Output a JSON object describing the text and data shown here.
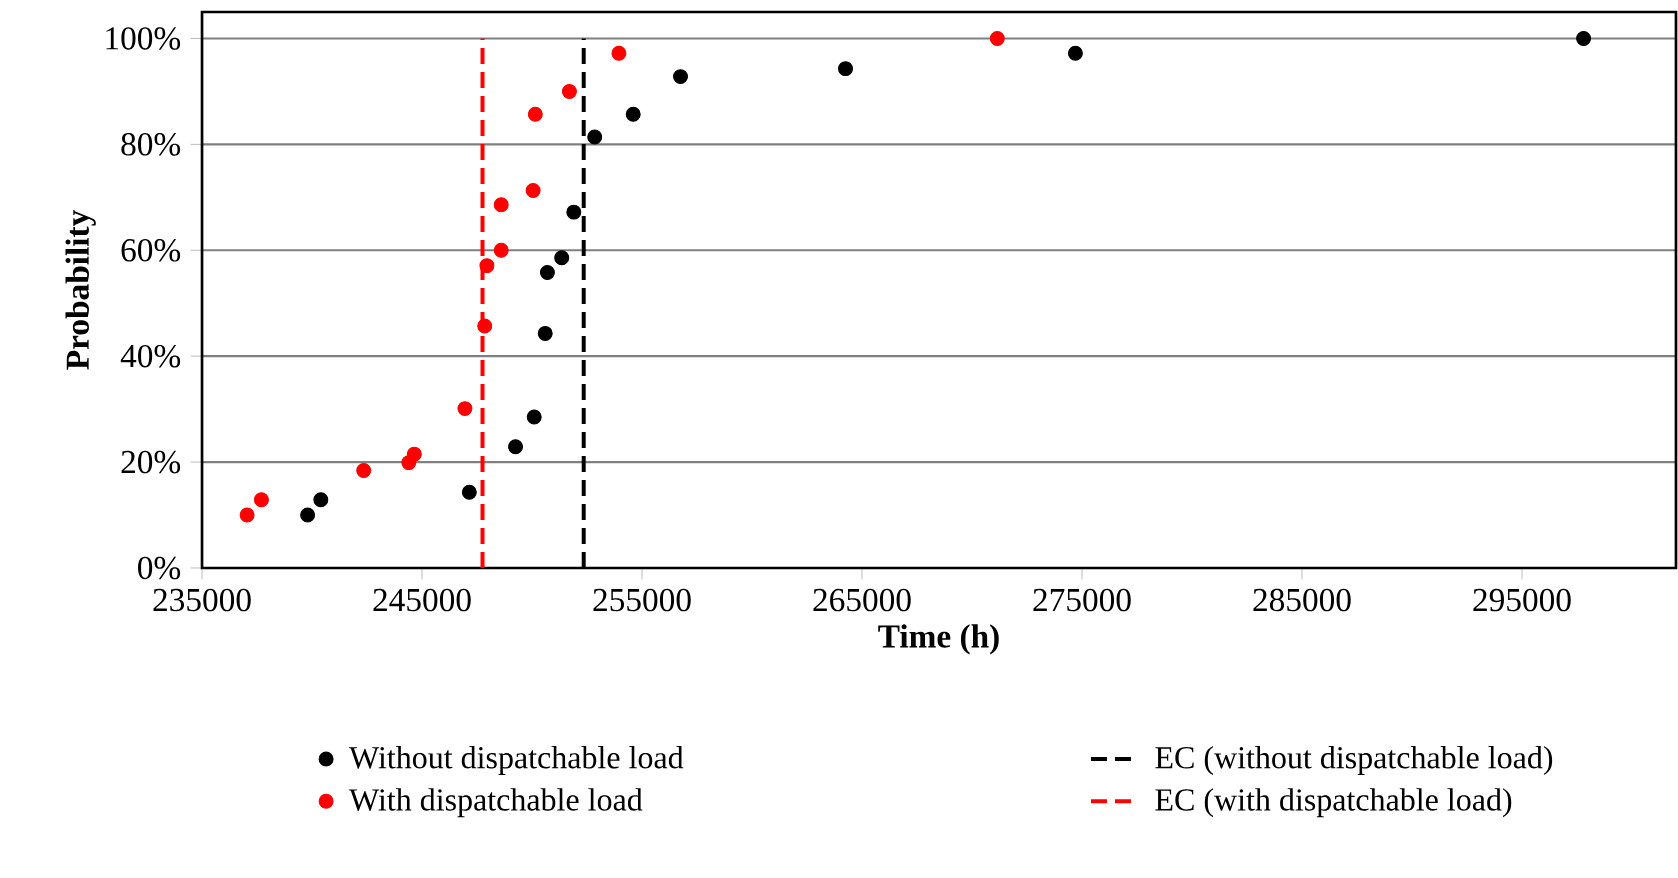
{
  "chart_data": {
    "type": "scatter",
    "xlabel": "Time (h)",
    "ylabel": "Probability",
    "xlim": [
      235000,
      302000
    ],
    "xticks": [
      235000,
      245000,
      255000,
      265000,
      275000,
      285000,
      295000
    ],
    "ylim": [
      0,
      105
    ],
    "yticks": [
      {
        "value": 0,
        "label": "0%"
      },
      {
        "value": 20,
        "label": "20%"
      },
      {
        "value": 40,
        "label": "40%"
      },
      {
        "value": 60,
        "label": "60%"
      },
      {
        "value": 80,
        "label": "80%"
      },
      {
        "value": 100,
        "label": "100%"
      }
    ],
    "grid": "y",
    "legend": "bottom",
    "marker": "circle",
    "series": [
      {
        "name": "Without dispatchable load",
        "color": "#000000",
        "x": [
          239800,
          240400,
          247150,
          249250,
          250100,
          250600,
          250700,
          251350,
          251900,
          252850,
          254600,
          256750,
          264250,
          274700,
          297800
        ],
        "values": [
          10.0,
          12.9,
          14.3,
          22.9,
          28.5,
          44.3,
          55.8,
          58.6,
          67.2,
          81.4,
          85.7,
          92.8,
          94.3,
          97.2,
          100
        ]
      },
      {
        "name": "With dispatchable load",
        "color": "#ff0000",
        "x": [
          237050,
          237700,
          242350,
          244400,
          244650,
          246950,
          247850,
          247950,
          248600,
          248600,
          250050,
          250150,
          251700,
          253950,
          271150
        ],
        "values": [
          10.0,
          12.9,
          18.4,
          19.9,
          21.5,
          30.1,
          45.7,
          57.1,
          60.0,
          68.6,
          71.3,
          85.7,
          90.0,
          97.2,
          100
        ]
      }
    ],
    "ref_lines": [
      {
        "axis": "x",
        "value": 252350,
        "label": "EC (without dispatchable load)",
        "color": "#000000",
        "line_style": "dashed"
      },
      {
        "axis": "x",
        "value": 247750,
        "label": "EC (with dispatchable load)",
        "color": "#ff0000",
        "line_style": "dashed"
      }
    ]
  }
}
